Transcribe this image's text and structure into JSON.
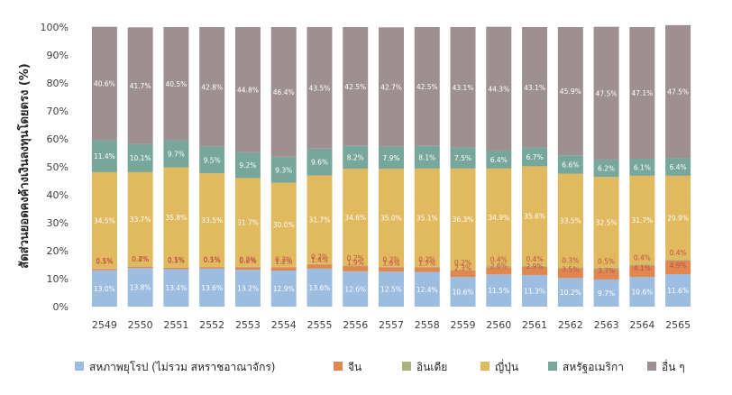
{
  "chart_data": {
    "type": "bar",
    "stacked": true,
    "title": "",
    "xlabel": "",
    "ylabel": "สัดส่วนยอดคงค้างเงินลงทุนโดยตรง (%)",
    "ylim": [
      0,
      100
    ],
    "y_ticks": [
      "0%",
      "10%",
      "20%",
      "30%",
      "40%",
      "50%",
      "60%",
      "70%",
      "80%",
      "90%",
      "100%"
    ],
    "grid": false,
    "legend_position": "bottom",
    "categories": [
      "2549",
      "2550",
      "2551",
      "2552",
      "2553",
      "2554",
      "2555",
      "2556",
      "2557",
      "2558",
      "2559",
      "2560",
      "2561",
      "2562",
      "2563",
      "2564",
      "2565"
    ],
    "series": [
      {
        "name": "สหภาพยุโรป (ไม่รวม สหราชอาณาจักร)",
        "color": "#9dbde0",
        "label_color": "#ffffff",
        "values": [
          13.0,
          13.8,
          13.4,
          13.6,
          13.2,
          12.9,
          13.6,
          12.6,
          12.5,
          12.4,
          10.6,
          11.5,
          11.3,
          10.2,
          9.7,
          10.6,
          11.6
        ],
        "labels": [
          "13.0%",
          "13.8%",
          "13.4%",
          "13.6%",
          "13.2%",
          "12.9%",
          "13.6%",
          "12.6%",
          "12.5%",
          "12.4%",
          "10.6%",
          "11.5%",
          "11.3%",
          "10.2%",
          "9.7%",
          "10.6%",
          "11.6%"
        ]
      },
      {
        "name": "จีน",
        "color": "#e0874f",
        "label_color": "#c0504d",
        "values": [
          0.5,
          0.4,
          0.5,
          0.5,
          0.9,
          1.2,
          1.4,
          1.9,
          1.6,
          1.7,
          2.3,
          2.6,
          2.9,
          3.5,
          3.7,
          4.1,
          4.9
        ],
        "labels": [
          "0.5%",
          "0.4%",
          "0.5%",
          "0.5%",
          "0.9%",
          "1.2%",
          "1.4%",
          "1.9%",
          "1.6%",
          "1.7%",
          "2.3%",
          "2.6%",
          "2.9%",
          "3.5%",
          "3.7%",
          "4.1%",
          "4.9%"
        ]
      },
      {
        "name": "อินเดีย",
        "color": "#a7b47d",
        "label_color": "#c0504d",
        "values": [
          0.1,
          0.2,
          0.1,
          0.1,
          0.2,
          0.2,
          0.2,
          0.2,
          0.2,
          0.2,
          0.2,
          0.4,
          0.4,
          0.3,
          0.5,
          0.4,
          0.4
        ],
        "labels": [
          "0.1%",
          "0.2%",
          "0.1%",
          "0.1%",
          "0.2%",
          "0.2%",
          "0.2%",
          "0.2%",
          "0.2%",
          "0.2%",
          "0.2%",
          "0.4%",
          "0.4%",
          "0.3%",
          "0.5%",
          "0.4%",
          "0.4%"
        ]
      },
      {
        "name": "ญี่ปุ่น",
        "color": "#e1b95e",
        "label_color": "#ffffff",
        "values": [
          34.5,
          33.7,
          35.8,
          33.5,
          31.7,
          30.0,
          31.7,
          34.6,
          35.0,
          35.1,
          36.3,
          34.9,
          35.6,
          33.5,
          32.5,
          31.7,
          29.9
        ],
        "labels": [
          "34.5%",
          "33.7%",
          "35.8%",
          "33.5%",
          "31.7%",
          "30.0%",
          "31.7%",
          "34.6%",
          "35.0%",
          "35.1%",
          "36.3%",
          "34.9%",
          "35.6%",
          "33.5%",
          "32.5%",
          "31.7%",
          "29.9%"
        ]
      },
      {
        "name": "สหรัฐอเมริกา",
        "color": "#77a79b",
        "label_color": "#ffffff",
        "values": [
          11.4,
          10.1,
          9.7,
          9.5,
          9.2,
          9.3,
          9.6,
          8.2,
          7.9,
          8.1,
          7.5,
          6.4,
          6.7,
          6.6,
          6.2,
          6.1,
          6.4
        ],
        "labels": [
          "11.4%",
          "10.1%",
          "9.7%",
          "9.5%",
          "9.2%",
          "9.3%",
          "9.6%",
          "8.2%",
          "7.9%",
          "8.1%",
          "7.5%",
          "6.4%",
          "6.7%",
          "6.6%",
          "6.2%",
          "6.1%",
          "6.4%"
        ]
      },
      {
        "name": "อื่น ๆ",
        "color": "#9e9090",
        "label_color": "#ffffff",
        "values": [
          40.6,
          41.7,
          40.5,
          42.8,
          44.8,
          46.4,
          43.5,
          42.5,
          42.7,
          42.5,
          43.1,
          44.3,
          43.1,
          45.9,
          47.5,
          47.1,
          47.5
        ],
        "labels": [
          "40.6%",
          "41.7%",
          "40.5%",
          "42.8%",
          "44.8%",
          "46.4%",
          "43.5%",
          "42.5%",
          "42.7%",
          "42.5%",
          "43.1%",
          "44.3%",
          "43.1%",
          "45.9%",
          "47.5%",
          "47.1%",
          "47.5%"
        ]
      }
    ]
  }
}
